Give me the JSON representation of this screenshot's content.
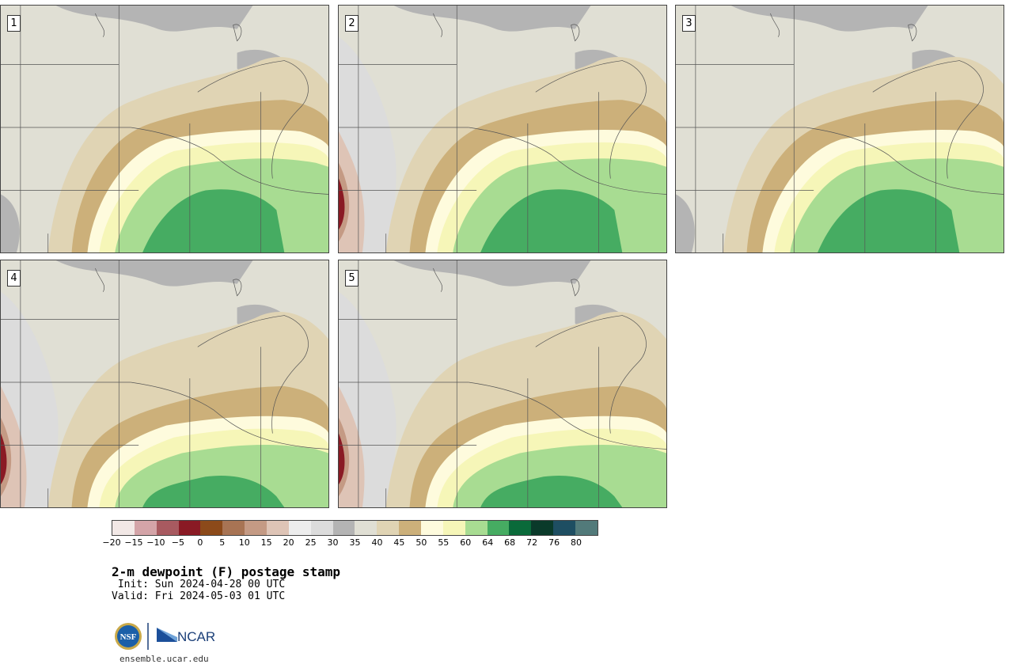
{
  "panels": [
    {
      "label": "1",
      "mode": "standard"
    },
    {
      "label": "2",
      "mode": "dry"
    },
    {
      "label": "3",
      "mode": "standard"
    },
    {
      "label": "4",
      "mode": "south"
    },
    {
      "label": "5",
      "mode": "south2"
    }
  ],
  "colorbar": {
    "colors": [
      "#f2e8e6",
      "#d4a4a8",
      "#a85a60",
      "#8a1a24",
      "#8c4a1a",
      "#a87454",
      "#c49a84",
      "#dec4b6",
      "#ededed",
      "#dcdcdc",
      "#b4b4b4",
      "#e0dfd4",
      "#e0d4b4",
      "#ccb07a",
      "#fefbdd",
      "#f6f6b8",
      "#a8dc92",
      "#46ac62",
      "#0a6a3a",
      "#0a3a2a",
      "#1e4e62",
      "#527a7a"
    ],
    "ticks": [
      "−20",
      "−15",
      "−10",
      "−5",
      "0",
      "5",
      "10",
      "15",
      "20",
      "25",
      "30",
      "35",
      "40",
      "45",
      "50",
      "55",
      "60",
      "64",
      "68",
      "72",
      "76",
      "80"
    ]
  },
  "title": "2-m dewpoint (F) postage stamp",
  "init_line": " Init: Sun 2024-04-28 00 UTC",
  "valid_line": "Valid: Fri 2024-05-03 01 UTC",
  "logos": {
    "nsf": "NSF",
    "ncar": "NCAR"
  },
  "url": "ensemble.ucar.edu"
}
